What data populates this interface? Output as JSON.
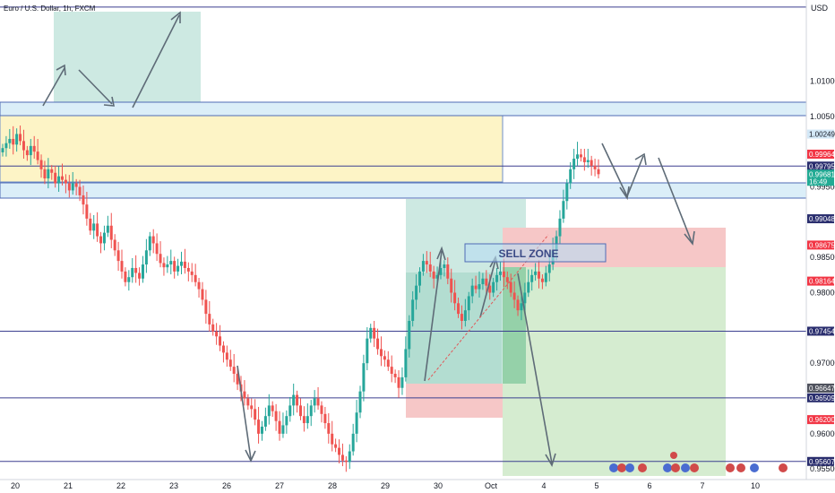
{
  "header": {
    "title": "Euro / U.S. Dollar, 1h, FXCM",
    "currency": "USD"
  },
  "annotation": {
    "sell_zone": "SELL ZONE"
  },
  "chart_data": {
    "type": "candlestick",
    "symbol": "EURUSD",
    "timeframe": "1h",
    "ylim": [
      0.9535,
      1.0215
    ],
    "y_ticks": [
      {
        "label": "1.01000",
        "value": 1.01
      },
      {
        "label": "1.00500",
        "value": 1.005
      },
      {
        "label": "0.99500",
        "value": 0.995
      },
      {
        "label": "0.98500",
        "value": 0.985
      },
      {
        "label": "0.98000",
        "value": 0.98
      },
      {
        "label": "0.97000",
        "value": 0.97
      },
      {
        "label": "0.96000",
        "value": 0.96
      },
      {
        "label": "0.95500",
        "value": 0.955
      }
    ],
    "x_labels": [
      "20",
      "21",
      "22",
      "23",
      "26",
      "27",
      "28",
      "29",
      "30",
      "Oct",
      "4",
      "5",
      "6",
      "7",
      "10"
    ],
    "price_tags": [
      {
        "label": "1.00249",
        "value": 1.00249,
        "style": "zone"
      },
      {
        "label": "0.99964",
        "value": 0.99964,
        "style": "red"
      },
      {
        "label": "0.99795",
        "value": 0.99795,
        "style": "navy"
      },
      {
        "label": "0.99681",
        "sub": "16:49",
        "value": 0.99681,
        "style": "green"
      },
      {
        "label": "0.99048",
        "value": 0.99048,
        "style": "navy"
      },
      {
        "label": "0.98675",
        "value": 0.98675,
        "style": "red"
      },
      {
        "label": "0.98164",
        "value": 0.98164,
        "style": "red"
      },
      {
        "label": "0.97454",
        "value": 0.97454,
        "style": "navy"
      },
      {
        "label": "0.96647",
        "value": 0.96647,
        "style": "gray"
      },
      {
        "label": "0.96509",
        "value": 0.96509,
        "style": "navy"
      },
      {
        "label": "0.96200",
        "value": 0.962,
        "style": "red"
      },
      {
        "label": "0.95607",
        "value": 0.95607,
        "style": "navy"
      }
    ],
    "horizontal_levels": [
      1.0205,
      0.99795,
      0.97454,
      0.96509,
      0.95607
    ],
    "closes": [
      1.0005,
      1.0012,
      1.0018,
      1.001,
      1.0025,
      1.0015,
      1.0002,
      0.9995,
      1.0008,
      1.0,
      0.9988,
      0.9975,
      0.9962,
      0.9975,
      0.997,
      0.9955,
      0.9965,
      0.996,
      0.9955,
      0.9945,
      0.9955,
      0.995,
      0.9938,
      0.9925,
      0.9905,
      0.9888,
      0.9898,
      0.988,
      0.987,
      0.9885,
      0.9895,
      0.9875,
      0.986,
      0.9845,
      0.983,
      0.9815,
      0.9822,
      0.9835,
      0.9828,
      0.982,
      0.984,
      0.986,
      0.988,
      0.987,
      0.9855,
      0.9842,
      0.9836,
      0.984,
      0.9845,
      0.983,
      0.9838,
      0.9844,
      0.9835,
      0.983,
      0.9825,
      0.9815,
      0.9805,
      0.979,
      0.977,
      0.9755,
      0.9745,
      0.9738,
      0.9725,
      0.9715,
      0.9705,
      0.9695,
      0.9685,
      0.967,
      0.966,
      0.965,
      0.964,
      0.9635,
      0.962,
      0.96,
      0.961,
      0.9625,
      0.964,
      0.9632,
      0.9618,
      0.96,
      0.9612,
      0.9625,
      0.964,
      0.9655,
      0.964,
      0.9625,
      0.9615,
      0.9625,
      0.964,
      0.965,
      0.964,
      0.9628,
      0.9615,
      0.96,
      0.9585,
      0.958,
      0.957,
      0.9562,
      0.956,
      0.9575,
      0.96,
      0.963,
      0.966,
      0.97,
      0.9735,
      0.975,
      0.9735,
      0.972,
      0.971,
      0.9705,
      0.9695,
      0.9685,
      0.968,
      0.9665,
      0.968,
      0.972,
      0.976,
      0.979,
      0.981,
      0.983,
      0.9845,
      0.984,
      0.983,
      0.982,
      0.9825,
      0.9835,
      0.984,
      0.982,
      0.98,
      0.9785,
      0.977,
      0.976,
      0.9775,
      0.9795,
      0.981,
      0.9805,
      0.9812,
      0.982,
      0.981,
      0.98,
      0.9815,
      0.9825,
      0.983,
      0.9822,
      0.9815,
      0.98,
      0.979,
      0.9775,
      0.9785,
      0.98,
      0.9815,
      0.9825,
      0.983,
      0.982,
      0.9815,
      0.9828,
      0.984,
      0.986,
      0.988,
      0.9905,
      0.993,
      0.9955,
      0.9975,
      0.999,
      0.9996,
      0.9992,
      0.9985,
      0.9988,
      0.998,
      0.9975,
      0.9968
    ]
  }
}
